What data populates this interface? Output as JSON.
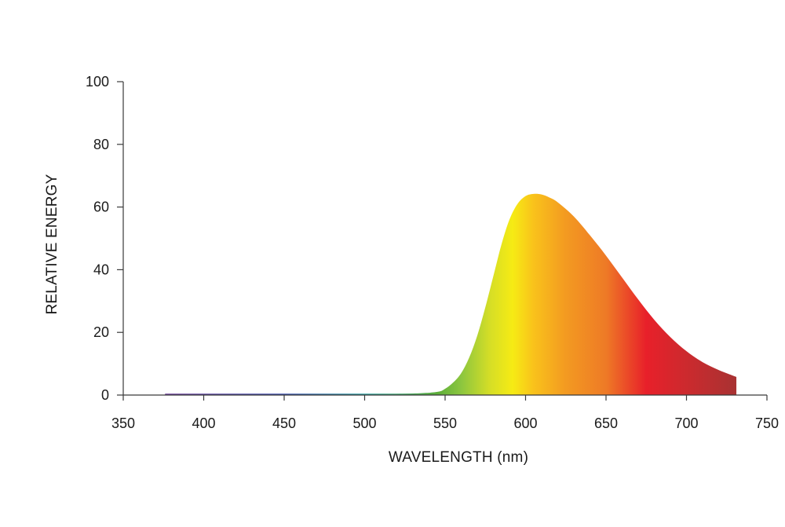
{
  "chart_data": {
    "type": "area",
    "title": "",
    "xlabel": "WAVELENGTH (nm)",
    "ylabel": "RELATIVE ENERGY",
    "xlim": [
      350,
      750
    ],
    "ylim": [
      0,
      100
    ],
    "xticks": [
      350,
      400,
      450,
      500,
      550,
      600,
      650,
      700,
      750
    ],
    "yticks": [
      0,
      20,
      40,
      60,
      80,
      100
    ],
    "grid": false,
    "legend": "none",
    "fill": "spectral gradient (violet to deep red)",
    "series": [
      {
        "x": [
          376,
          400,
          450,
          500,
          530,
          545,
          550,
          555,
          560,
          565,
          570,
          575,
          580,
          585,
          590,
          595,
          600,
          605,
          610,
          615,
          620,
          630,
          640,
          650,
          660,
          670,
          680,
          690,
          700,
          710,
          720,
          731
        ],
        "values": [
          0.3,
          0.3,
          0.3,
          0.3,
          0.5,
          1,
          2,
          4,
          7,
          12,
          19,
          28,
          38,
          48,
          56,
          61,
          63.5,
          64.2,
          64,
          63,
          61.5,
          57,
          51,
          44.5,
          37.5,
          30.5,
          24,
          18.5,
          14,
          10.5,
          8,
          5.8
        ]
      }
    ],
    "spectrum_colors": [
      {
        "wavelength": 380,
        "color": "#6a3d9a"
      },
      {
        "wavelength": 450,
        "color": "#3a4fb0"
      },
      {
        "wavelength": 500,
        "color": "#2aa0a0"
      },
      {
        "wavelength": 545,
        "color": "#5cae3a"
      },
      {
        "wavelength": 560,
        "color": "#8cc63f"
      },
      {
        "wavelength": 578,
        "color": "#d6de26"
      },
      {
        "wavelength": 592,
        "color": "#f6eb14"
      },
      {
        "wavelength": 605,
        "color": "#f9c21b"
      },
      {
        "wavelength": 625,
        "color": "#f39a21"
      },
      {
        "wavelength": 650,
        "color": "#ee7a26"
      },
      {
        "wavelength": 675,
        "color": "#e8202a"
      },
      {
        "wavelength": 700,
        "color": "#cc2a2e"
      },
      {
        "wavelength": 731,
        "color": "#a83232"
      }
    ]
  }
}
